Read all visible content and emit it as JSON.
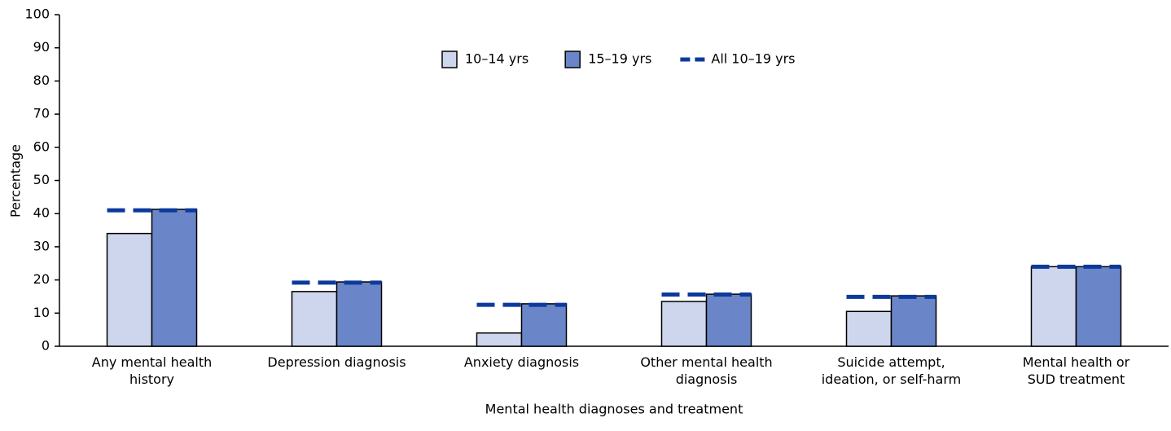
{
  "chart_data": {
    "type": "bar",
    "x_label": "Mental health diagnoses and treatment",
    "y_label": "Percentage",
    "categories": [
      "Any mental health\nhistory",
      "Depression diagnosis",
      "Anxiety diagnosis",
      "Other mental health\ndiagnosis",
      "Suicide attempt,\nideation, or self-harm",
      "Mental health or\nSUD treatment"
    ],
    "series": [
      {
        "name": "10–14 yrs",
        "color": "#cdd6ec",
        "values": [
          34,
          16.5,
          4,
          13.5,
          10.5,
          24
        ]
      },
      {
        "name": "15–19 yrs",
        "color": "#6a86c8",
        "values": [
          41.3,
          19.4,
          12.8,
          15.7,
          15.2,
          24
        ]
      },
      {
        "name": "All 10–19 yrs",
        "color": "#0c3a9c",
        "type": "dash",
        "values": [
          41,
          19.2,
          12.5,
          15.6,
          14.9,
          24
        ]
      }
    ],
    "ylim": [
      0,
      100
    ],
    "yticks": [
      0,
      10,
      20,
      30,
      40,
      50,
      60,
      70,
      80,
      90,
      100
    ]
  }
}
